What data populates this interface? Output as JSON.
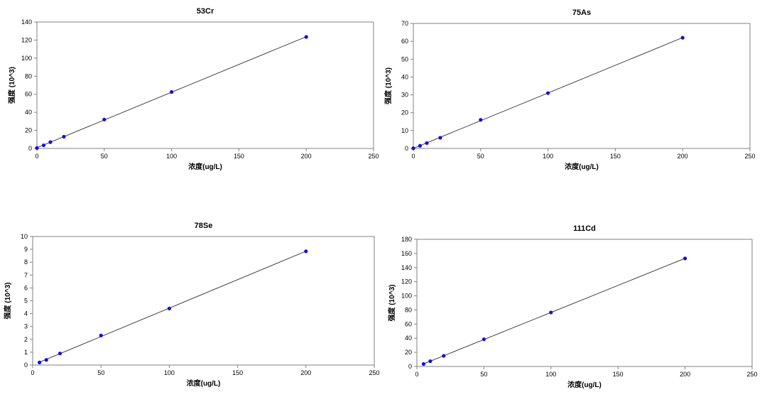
{
  "chart_data": [
    {
      "type": "scatter",
      "title": "53Cr",
      "xlabel": "浓度(ug/L)",
      "ylabel": "强度 (10^3)",
      "xlim": [
        0,
        250
      ],
      "ylim": [
        0,
        140
      ],
      "xticks": [
        0,
        50,
        100,
        150,
        200,
        250
      ],
      "yticks": [
        0,
        20,
        40,
        60,
        80,
        100,
        120,
        140
      ],
      "grid": false,
      "trendline": true,
      "series": [
        {
          "x": [
            0,
            5,
            10,
            20,
            50,
            100,
            200
          ],
          "y": [
            0.5,
            3.5,
            7,
            13,
            32,
            62.5,
            123.5
          ]
        }
      ],
      "marker_color": "#1010e0",
      "line_color": "#404040"
    },
    {
      "type": "scatter",
      "title": "75As",
      "xlabel": "浓度(ug/L)",
      "ylabel": "强度 (10^3)",
      "xlim": [
        0,
        250
      ],
      "ylim": [
        0,
        70
      ],
      "xticks": [
        0,
        50,
        100,
        150,
        200,
        250
      ],
      "yticks": [
        0,
        10,
        20,
        30,
        40,
        50,
        60,
        70
      ],
      "grid": false,
      "trendline": true,
      "series": [
        {
          "x": [
            0,
            5,
            10,
            20,
            50,
            100,
            200
          ],
          "y": [
            0.1,
            1.5,
            3,
            6,
            16,
            31,
            62
          ]
        }
      ],
      "marker_color": "#1010e0",
      "line_color": "#404040"
    },
    {
      "type": "scatter",
      "title": "78Se",
      "xlabel": "浓度(ug/L)",
      "ylabel": "强度 (10^3)",
      "xlim": [
        0,
        250
      ],
      "ylim": [
        0,
        10
      ],
      "xticks": [
        0,
        50,
        100,
        150,
        200,
        250
      ],
      "yticks": [
        0,
        1,
        2,
        3,
        4,
        5,
        6,
        7,
        8,
        9,
        10
      ],
      "grid": false,
      "trendline": true,
      "series": [
        {
          "x": [
            5,
            10,
            20,
            50,
            100,
            200
          ],
          "y": [
            0.2,
            0.4,
            0.9,
            2.3,
            4.4,
            8.85
          ]
        }
      ],
      "marker_color": "#1010e0",
      "line_color": "#404040"
    },
    {
      "type": "scatter",
      "title": "111Cd",
      "xlabel": "浓度(ug/L)",
      "ylabel": "强度 (10^3)",
      "xlim": [
        0,
        250
      ],
      "ylim": [
        0,
        180
      ],
      "xticks": [
        0,
        50,
        100,
        150,
        200,
        250
      ],
      "yticks": [
        0,
        20,
        40,
        60,
        80,
        100,
        120,
        140,
        160,
        180
      ],
      "grid": false,
      "trendline": true,
      "series": [
        {
          "x": [
            5,
            10,
            20,
            50,
            100,
            200
          ],
          "y": [
            3.5,
            7.5,
            15,
            38.5,
            76.5,
            153
          ]
        }
      ],
      "marker_color": "#1010e0",
      "line_color": "#404040"
    }
  ]
}
